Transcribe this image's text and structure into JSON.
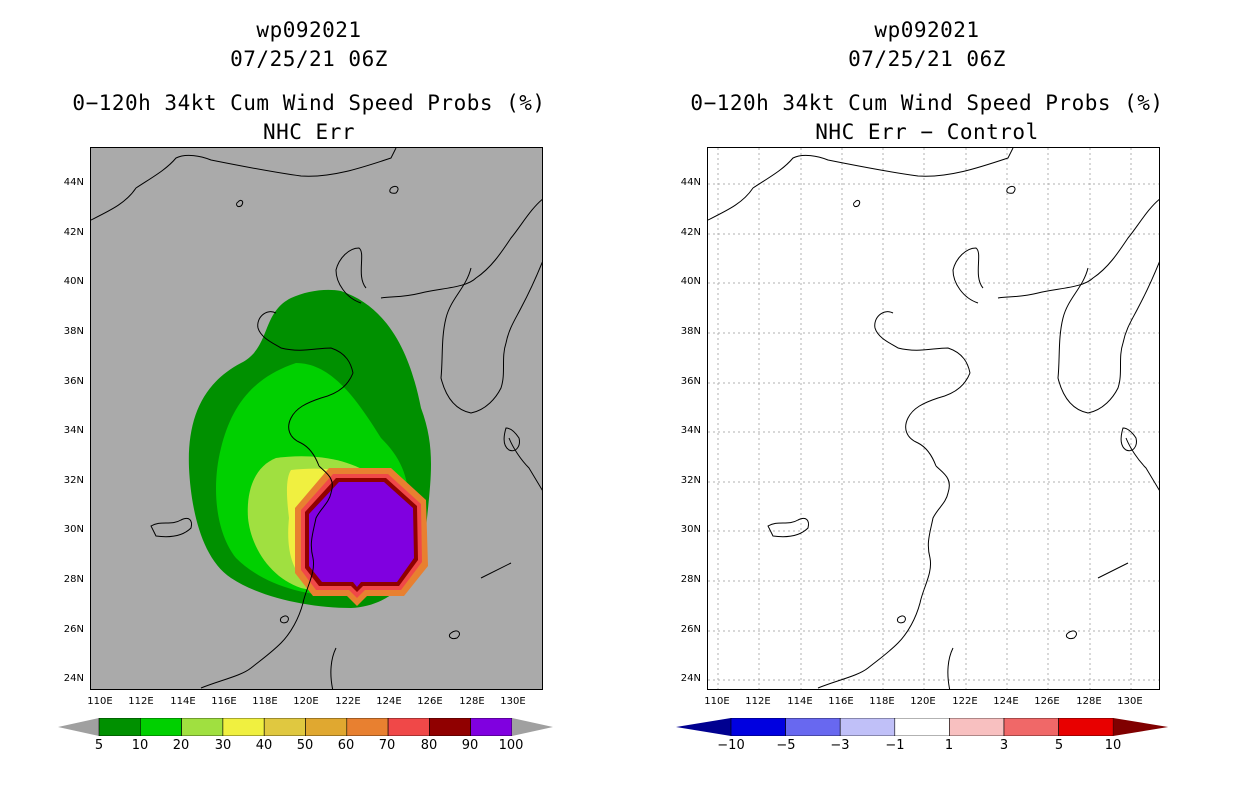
{
  "left": {
    "storm_id": "wp092021",
    "datetime": "07/25/21 06Z",
    "product": "0−120h 34kt Cum Wind Speed Probs (%)",
    "subtitle": "NHC Err",
    "map_background": "#aaaaaa",
    "colorbar": {
      "labels": [
        "5",
        "10",
        "20",
        "30",
        "40",
        "50",
        "60",
        "70",
        "80",
        "90",
        "100"
      ],
      "colors": [
        "#009000",
        "#00d000",
        "#a0e040",
        "#f0f040",
        "#e0c840",
        "#e0a830",
        "#e88030",
        "#f04848",
        "#900000",
        "#8000e0"
      ],
      "end_low": "#a0a0a0",
      "end_high": "#a0a0a0"
    }
  },
  "right": {
    "storm_id": "wp092021",
    "datetime": "07/25/21 06Z",
    "product": "0−120h 34kt Cum Wind Speed Probs (%)",
    "subtitle": "NHC Err − Control",
    "map_background": "#ffffff",
    "colorbar": {
      "labels": [
        "−10",
        "−5",
        "−3",
        "−1",
        "1",
        "3",
        "5",
        "10"
      ],
      "colors": [
        "#0000e0",
        "#6868f0",
        "#c0c0f8",
        "#ffffff",
        "#f8c0c0",
        "#f06868",
        "#e80000"
      ],
      "end_low": "#000090",
      "end_high": "#800000"
    }
  },
  "axes": {
    "lat_labels": [
      "44N",
      "42N",
      "40N",
      "38N",
      "36N",
      "34N",
      "32N",
      "30N",
      "28N",
      "26N",
      "24N"
    ],
    "lon_labels": [
      "110E",
      "112E",
      "114E",
      "116E",
      "118E",
      "120E",
      "122E",
      "124E",
      "126E",
      "128E",
      "130E"
    ]
  }
}
